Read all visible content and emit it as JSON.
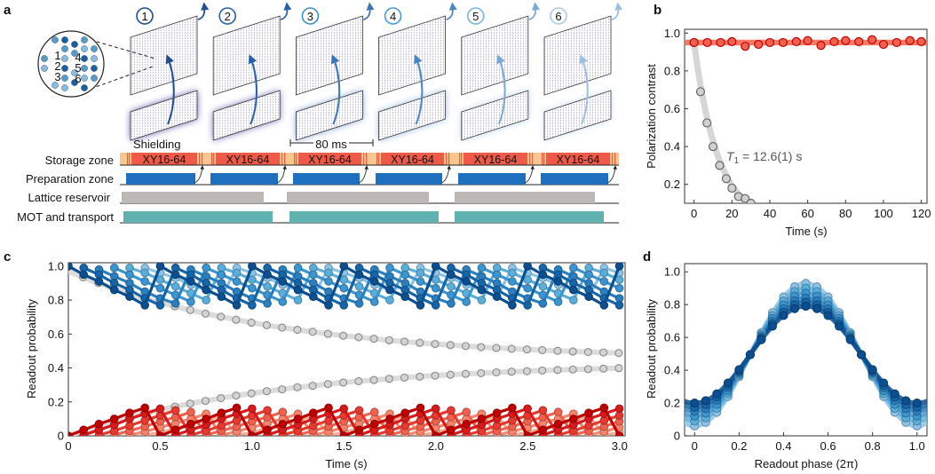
{
  "panel_a": {
    "label": "a",
    "sequence_labels": [
      "1",
      "2",
      "3",
      "4",
      "5",
      "6"
    ],
    "zoom_site_labels": [
      "1",
      "2",
      "3",
      "4",
      "5",
      "6"
    ],
    "shielding_label": "Shielding",
    "duration_label": "80 ms",
    "pulse_label": "XY16-64",
    "rows": [
      {
        "label": "Storage zone"
      },
      {
        "label": "Preparation zone"
      },
      {
        "label": "Lattice reservoir"
      },
      {
        "label": "MOT and transport"
      }
    ],
    "colors": {
      "storage": "#f9c68e",
      "pulse": "#ee5a47",
      "preparation": "#1f6fbf",
      "reservoir": "#bdb8b6",
      "mot": "#5fb2b0"
    }
  },
  "chart_data": [
    {
      "panel": "b",
      "type": "scatter",
      "xlabel": "Time (s)",
      "ylabel": "Polarization contrast",
      "xlim": [
        -5,
        123
      ],
      "ylim": [
        0.1,
        1.02
      ],
      "xticks": [
        0,
        20,
        40,
        60,
        80,
        100,
        120
      ],
      "yticks": [
        0.2,
        0.4,
        0.6,
        0.8,
        1.0
      ],
      "annotation": {
        "symbol": "T",
        "subscript": "1",
        "text": " = 12.6(1) s"
      },
      "series": [
        {
          "color": "#e8392e",
          "x": [
            0,
            7,
            14,
            20,
            27,
            34,
            40,
            47,
            54,
            60,
            67,
            74,
            80,
            87,
            94,
            100,
            107,
            114,
            120
          ],
          "y": [
            0.95,
            0.95,
            0.95,
            0.955,
            0.93,
            0.94,
            0.95,
            0.95,
            0.955,
            0.96,
            0.935,
            0.955,
            0.96,
            0.955,
            0.965,
            0.94,
            0.95,
            0.96,
            0.955
          ],
          "fit_band": [
            0.935,
            0.965
          ]
        },
        {
          "color": "#9a9a9a",
          "x": [
            0,
            3.4,
            6.8,
            10,
            13.5,
            17,
            20,
            23.5,
            27,
            30
          ],
          "y": [
            0.95,
            0.69,
            0.525,
            0.4,
            0.3,
            0.23,
            0.18,
            0.135,
            0.125,
            0.1
          ],
          "fit": {
            "amplitude": 0.95,
            "T1": 12.6
          }
        }
      ]
    },
    {
      "panel": "c",
      "type": "line",
      "xlabel": "Time (s)",
      "ylabel": "Readout probability",
      "xlim": [
        0,
        3.03
      ],
      "ylim": [
        0,
        1.02
      ],
      "xticks": [
        0,
        0.5,
        1.0,
        1.5,
        2.0,
        2.5,
        3.0
      ],
      "ytick_labels": [
        "0",
        "0.2",
        "0.4",
        "0.6",
        "0.8",
        "1.0"
      ],
      "xtick_labels": [
        "0",
        "0.5",
        "1.0",
        "1.5",
        "2.0",
        "2.5",
        "3.0"
      ],
      "sampling_interval_s": 0.0833,
      "gray": [
        {
          "color": "#9a9a9a",
          "start_s": 0.08,
          "values": [
            0.934,
            0.9,
            0.868,
            0.839,
            0.811,
            0.786,
            0.763,
            0.741,
            0.72,
            0.702,
            0.684,
            0.667,
            0.652,
            0.638,
            0.625,
            0.613,
            0.601,
            0.59,
            0.581,
            0.572,
            0.563,
            0.555,
            0.548,
            0.541,
            0.535,
            0.529,
            0.523,
            0.518,
            0.513,
            0.509,
            0.505,
            0.501,
            0.497,
            0.494,
            0.491,
            0.488
          ]
        },
        {
          "color": "#9a9a9a",
          "start_s": 0.08,
          "values": [
            0.03,
            0.058,
            0.084,
            0.108,
            0.131,
            0.152,
            0.172,
            0.19,
            0.206,
            0.222,
            0.237,
            0.25,
            0.263,
            0.274,
            0.286,
            0.295,
            0.305,
            0.314,
            0.322,
            0.329,
            0.336,
            0.343,
            0.349,
            0.355,
            0.36,
            0.365,
            0.369,
            0.374,
            0.378,
            0.381,
            0.385,
            0.388,
            0.391,
            0.393,
            0.396,
            0.399
          ]
        }
      ],
      "blue": [
        {
          "color": "#0b4f91",
          "start_s": 0.0,
          "values": [
            1.0,
            0.95,
            0.91,
            0.86,
            0.82,
            0.77,
            1.0,
            0.95,
            0.91,
            0.86,
            0.82,
            0.77,
            1.0,
            0.95,
            0.91,
            0.86,
            0.82,
            0.77,
            1.0,
            0.95,
            0.91,
            0.86,
            0.82,
            0.77,
            1.0,
            0.95,
            0.91,
            0.86,
            0.82,
            0.77,
            1.0,
            0.95,
            0.91,
            0.86,
            0.82,
            0.77,
            1.0
          ]
        },
        {
          "color": "#1565a8",
          "start_s": 0.0833,
          "values": [
            0.99,
            0.95,
            0.9,
            0.86,
            0.81,
            0.77,
            0.99,
            0.95,
            0.9,
            0.86,
            0.81,
            0.77,
            0.99,
            0.95,
            0.9,
            0.86,
            0.81,
            0.77,
            0.99,
            0.95,
            0.9,
            0.86,
            0.81,
            0.77,
            0.99,
            0.95,
            0.9,
            0.86,
            0.81,
            0.77,
            0.99,
            0.95,
            0.9,
            0.86,
            0.81,
            0.77
          ]
        },
        {
          "color": "#2a7fc0",
          "start_s": 0.1667,
          "values": [
            0.98,
            0.94,
            0.9,
            0.85,
            0.81,
            0.78,
            0.98,
            0.94,
            0.9,
            0.85,
            0.81,
            0.78,
            0.98,
            0.94,
            0.9,
            0.85,
            0.81,
            0.78,
            0.98,
            0.94,
            0.9,
            0.85,
            0.81,
            0.78,
            0.98,
            0.94,
            0.9,
            0.85,
            0.81,
            0.78,
            0.98,
            0.94,
            0.9,
            0.85,
            0.81
          ]
        },
        {
          "color": "#3b95d0",
          "start_s": 0.25,
          "values": [
            0.99,
            0.95,
            0.91,
            0.87,
            0.83,
            0.79,
            0.99,
            0.95,
            0.91,
            0.87,
            0.83,
            0.79,
            0.99,
            0.95,
            0.91,
            0.87,
            0.83,
            0.79,
            0.99,
            0.95,
            0.91,
            0.87,
            0.83,
            0.79,
            0.99,
            0.95,
            0.91,
            0.87,
            0.83,
            0.79,
            0.99,
            0.95,
            0.91,
            0.87
          ]
        },
        {
          "color": "#5aaedc",
          "start_s": 0.3333,
          "values": [
            0.99,
            0.96,
            0.92,
            0.88,
            0.84,
            0.8,
            0.99,
            0.96,
            0.92,
            0.88,
            0.84,
            0.8,
            0.99,
            0.96,
            0.92,
            0.88,
            0.84,
            0.8,
            0.99,
            0.96,
            0.92,
            0.88,
            0.84,
            0.8,
            0.99,
            0.96,
            0.92,
            0.88,
            0.84,
            0.8,
            0.99,
            0.96,
            0.92
          ]
        },
        {
          "color": "#8cc3e6",
          "start_s": 0.4167,
          "values": [
            0.99,
            0.96,
            0.93,
            0.89,
            0.86,
            0.82,
            0.99,
            0.96,
            0.93,
            0.89,
            0.86,
            0.82,
            0.99,
            0.96,
            0.93,
            0.89,
            0.86,
            0.82,
            0.99,
            0.96,
            0.93,
            0.89,
            0.86,
            0.82,
            0.99,
            0.96,
            0.93,
            0.89,
            0.86,
            0.82,
            0.99,
            0.96
          ]
        }
      ],
      "red": [
        {
          "color": "#c00000",
          "start_s": 0.0,
          "values": [
            0.0,
            0.035,
            0.07,
            0.1,
            0.135,
            0.165,
            0.0,
            0.035,
            0.07,
            0.1,
            0.135,
            0.165,
            0.0,
            0.035,
            0.07,
            0.1,
            0.135,
            0.165,
            0.0,
            0.035,
            0.07,
            0.1,
            0.135,
            0.165,
            0.0,
            0.035,
            0.07,
            0.1,
            0.135,
            0.165,
            0.0,
            0.035,
            0.07,
            0.1,
            0.135,
            0.165,
            0.0
          ]
        },
        {
          "color": "#d91a1a",
          "start_s": 0.0833,
          "values": [
            0.005,
            0.035,
            0.065,
            0.1,
            0.13,
            0.16,
            0.005,
            0.035,
            0.065,
            0.1,
            0.13,
            0.16,
            0.005,
            0.035,
            0.065,
            0.1,
            0.13,
            0.16,
            0.005,
            0.035,
            0.065,
            0.1,
            0.13,
            0.16,
            0.005,
            0.035,
            0.065,
            0.1,
            0.13,
            0.16,
            0.005,
            0.035,
            0.065,
            0.1,
            0.13,
            0.16
          ]
        },
        {
          "color": "#e8392e",
          "start_s": 0.1667,
          "values": [
            0.005,
            0.03,
            0.06,
            0.09,
            0.12,
            0.15,
            0.005,
            0.03,
            0.06,
            0.09,
            0.12,
            0.15,
            0.005,
            0.03,
            0.06,
            0.09,
            0.12,
            0.15,
            0.005,
            0.03,
            0.06,
            0.09,
            0.12,
            0.15,
            0.005,
            0.03,
            0.06,
            0.09,
            0.12,
            0.15,
            0.005,
            0.03,
            0.06,
            0.09,
            0.12
          ]
        },
        {
          "color": "#f2614d",
          "start_s": 0.25,
          "values": [
            0.005,
            0.03,
            0.055,
            0.085,
            0.11,
            0.14,
            0.005,
            0.03,
            0.055,
            0.085,
            0.11,
            0.14,
            0.005,
            0.03,
            0.055,
            0.085,
            0.11,
            0.14,
            0.005,
            0.03,
            0.055,
            0.085,
            0.11,
            0.14,
            0.005,
            0.03,
            0.055,
            0.085,
            0.11,
            0.14,
            0.005,
            0.03,
            0.055,
            0.085
          ]
        },
        {
          "color": "#f7856b",
          "start_s": 0.3333,
          "values": [
            0.005,
            0.025,
            0.05,
            0.075,
            0.1,
            0.13,
            0.005,
            0.025,
            0.05,
            0.075,
            0.1,
            0.13,
            0.005,
            0.025,
            0.05,
            0.075,
            0.1,
            0.13,
            0.005,
            0.025,
            0.05,
            0.075,
            0.1,
            0.13,
            0.005,
            0.025,
            0.05,
            0.075,
            0.1,
            0.13,
            0.005,
            0.025,
            0.05
          ]
        },
        {
          "color": "#fbab93",
          "start_s": 0.4167,
          "values": [
            0.005,
            0.02,
            0.045,
            0.07,
            0.09,
            0.12,
            0.005,
            0.02,
            0.045,
            0.07,
            0.09,
            0.12,
            0.005,
            0.02,
            0.045,
            0.07,
            0.09,
            0.12,
            0.005,
            0.02,
            0.045,
            0.07,
            0.09,
            0.12,
            0.005,
            0.02,
            0.045,
            0.07,
            0.09,
            0.12,
            0.005,
            0.02
          ]
        }
      ]
    },
    {
      "panel": "d",
      "type": "line",
      "xlabel": "Readout phase (2π)",
      "ylabel": "Readout probability",
      "xlim": [
        -0.045,
        1.045
      ],
      "ylim": [
        0,
        1.05
      ],
      "xtick_labels": [
        "0",
        "0.2",
        "0.4",
        "0.6",
        "0.8",
        "1.0"
      ],
      "ytick_labels": [
        "0",
        "0.2",
        "0.4",
        "0.6",
        "0.8",
        "1.0"
      ],
      "phases": [
        0,
        0.05,
        0.1,
        0.15,
        0.2,
        0.25,
        0.3,
        0.35,
        0.4,
        0.45,
        0.5,
        0.55,
        0.6,
        0.65,
        0.7,
        0.75,
        0.8,
        0.85,
        0.9,
        0.95,
        1.0
      ],
      "series": [
        {
          "color": "#8cc3e6",
          "offset": 0.495,
          "amplitude": 0.435
        },
        {
          "color": "#5aaedc",
          "offset": 0.495,
          "amplitude": 0.405
        },
        {
          "color": "#3b95d0",
          "offset": 0.495,
          "amplitude": 0.375
        },
        {
          "color": "#2a7fc0",
          "offset": 0.495,
          "amplitude": 0.345
        },
        {
          "color": "#1565a8",
          "offset": 0.495,
          "amplitude": 0.32
        },
        {
          "color": "#0b4f91",
          "offset": 0.495,
          "amplitude": 0.295
        }
      ]
    }
  ]
}
